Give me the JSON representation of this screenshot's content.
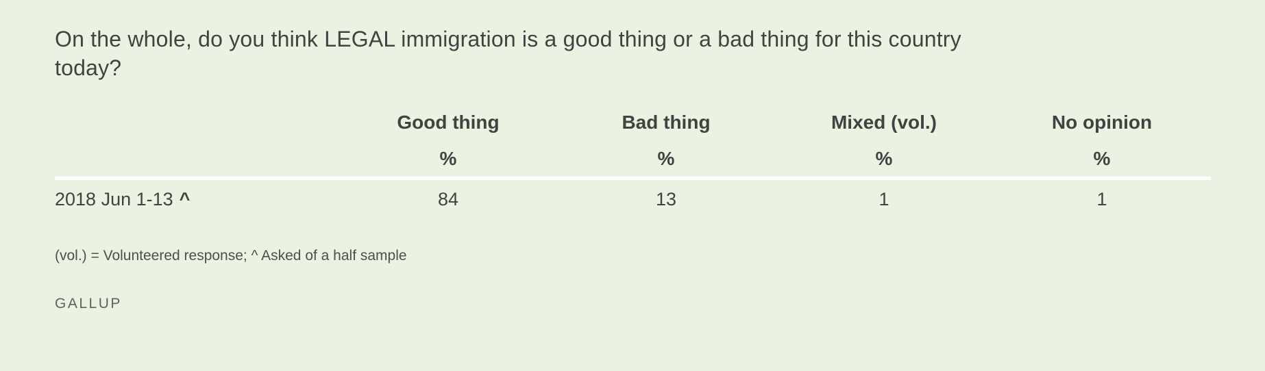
{
  "colors": {
    "background": "#eaf2e1",
    "text": "#3e4442",
    "footnote_text": "#4b504c",
    "brand_text": "#5d635f",
    "divider": "#ffffff"
  },
  "chart_data": {
    "type": "table",
    "title": "On the whole, do you think LEGAL immigration is a good thing or a bad thing for this country today?",
    "columns": [
      "Good thing",
      "Bad thing",
      "Mixed (vol.)",
      "No opinion"
    ],
    "unit": "%",
    "rows": [
      {
        "label": "2018 Jun 1-13",
        "marker": "^",
        "values": [
          84,
          13,
          1,
          1
        ]
      }
    ],
    "footnote": "(vol.) = Volunteered response; ^ Asked of a half sample",
    "source": "GALLUP"
  }
}
